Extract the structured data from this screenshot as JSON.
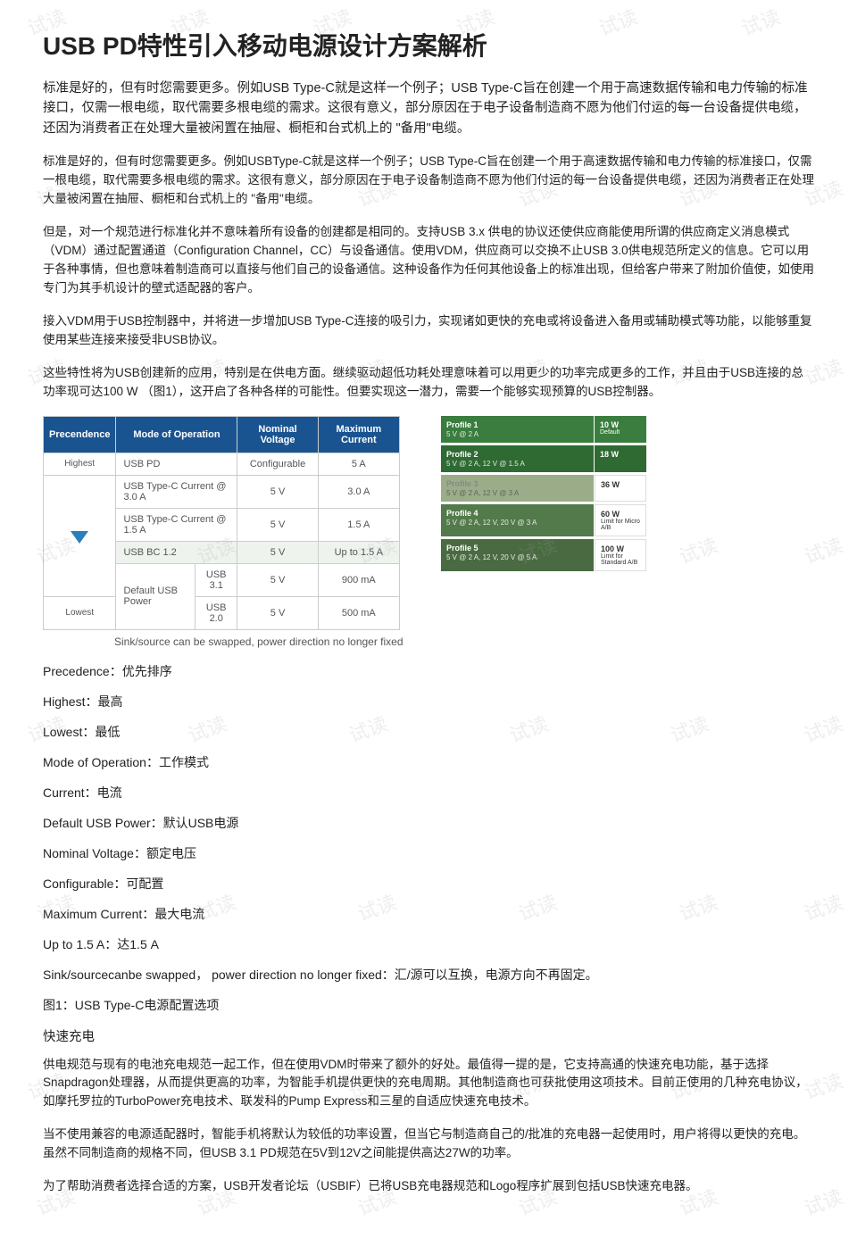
{
  "title": "USB PD特性引入移动电源设计方案解析",
  "paragraphs": {
    "p1": "标准是好的，但有时您需要更多。例如USB Type-C就是这样一个例子；USB Type-C旨在创建一个用于高速数据传输和电力传输的标准接口，仅需一根电缆，取代需要多根电缆的需求。这很有意义，部分原因在于电子设备制造商不愿为他们付运的每一台设备提供电缆，还因为消费者正在处理大量被闲置在抽屉、橱柜和台式机上的 \"备用\"电缆。",
    "p2": "标准是好的，但有时您需要更多。例如USBType-C就是这样一个例子；USB Type-C旨在创建一个用于高速数据传输和电力传输的标准接口，仅需一根电缆，取代需要多根电缆的需求。这很有意义，部分原因在于电子设备制造商不愿为他们付运的每一台设备提供电缆，还因为消费者正在处理大量被闲置在抽屉、橱柜和台式机上的 \"备用\"电缆。",
    "p3": "但是，对一个规范进行标准化并不意味着所有设备的创建都是相同的。支持USB 3.x 供电的协议还使供应商能使用所谓的供应商定义消息模式（VDM）通过配置通道（Configuration Channel，CC）与设备通信。使用VDM，供应商可以交换不止USB 3.0供电规范所定义的信息。它可以用于各种事情，但也意味着制造商可以直接与他们自己的设备通信。这种设备作为任何其他设备上的标准出现，但给客户带来了附加价值使，如使用专门为其手机设计的壁式适配器的客户。",
    "p4": "接入VDM用于USB控制器中，并将进一步增加USB Type-C连接的吸引力，实现诸如更快的充电或将设备进入备用或辅助模式等功能，以能够重复使用某些连接来接受非USB协议。",
    "p5": "这些特性将为USB创建新的应用，特别是在供电方面。继续驱动超低功耗处理意味着可以用更少的功率完成更多的工作，并且由于USB连接的总功率现可达100 W （图1），这开启了各种各样的可能性。但要实现这一潜力，需要一个能够实现预算的USB控制器。",
    "fast_title": "快速充电",
    "p6": "供电规范与现有的电池充电规范一起工作，但在使用VDM时带来了额外的好处。最值得一提的是，它支持高通的快速充电功能，基于选择Snapdragon处理器，从而提供更高的功率，为智能手机提供更快的充电周期。其他制造商也可获批使用这项技术。目前正使用的几种充电协议，如摩托罗拉的TurboPower充电技术、联发科的Pump Express和三星的自适应快速充电技术。",
    "p7": "当不使用兼容的电源适配器时，智能手机将默认为较低的功率设置，但当它与制造商自己的/批准的充电器一起使用时，用户将得以更快的充电。虽然不同制造商的规格不同，但USB 3.1 PD规范在5V到12V之间能提供高达27W的功率。",
    "p8": "为了帮助消费者选择合适的方案，USB开发者论坛（USBIF）已将USB充电器规范和Logo程序扩展到包括USB快速充电器。"
  },
  "prec_table": {
    "headers": {
      "c1": "Precendence",
      "c2": "Mode of Operation",
      "c3": "Nominal Voltage",
      "c4": "Maximum Current"
    },
    "highest": "Highest",
    "lowest": "Lowest",
    "rows": [
      {
        "mode": "USB PD",
        "sub": "",
        "nv": "Configurable",
        "mc": "5 A"
      },
      {
        "mode": "USB Type-C Current @ 3.0 A",
        "sub": "",
        "nv": "5 V",
        "mc": "3.0 A"
      },
      {
        "mode": "USB Type-C Current @ 1.5 A",
        "sub": "",
        "nv": "5 V",
        "mc": "1.5 A"
      },
      {
        "mode": "USB BC 1.2",
        "sub": "",
        "nv": "5 V",
        "mc": "Up to 1.5 A",
        "hl": true
      },
      {
        "mode": "Default USB Power",
        "sub": "USB 3.1",
        "nv": "5 V",
        "mc": "900 mA"
      },
      {
        "mode": "",
        "sub": "USB 2.0",
        "nv": "5 V",
        "mc": "500 mA"
      }
    ]
  },
  "profiles": [
    {
      "title": "Profile 1",
      "spec": "5 V @ 2 A",
      "watt": "10 W",
      "note": "Default",
      "lcls": "pf1",
      "rcls": "pf1r"
    },
    {
      "title": "Profile 2",
      "spec": "5 V @ 2 A, 12 V @ 1.5 A",
      "watt": "18 W",
      "note": "",
      "lcls": "pf2",
      "rcls": "pf2r"
    },
    {
      "title": "Profile 3",
      "spec": "5 V @ 2 A, 12 V @ 3 A",
      "watt": "36 W",
      "note": "",
      "lcls": "pf3",
      "rcls": "pf3r"
    },
    {
      "title": "Profile 4",
      "spec": "5 V @ 2 A, 12 V, 20 V @ 3 A",
      "watt": "60 W",
      "note": "Limit for Micro A/B",
      "lcls": "pf4",
      "rcls": "pf4r"
    },
    {
      "title": "Profile 5",
      "spec": "5 V @ 2 A, 12 V, 20 V @ 5 A",
      "watt": "100 W",
      "note": "Limit for Standard A/B",
      "lcls": "pf5",
      "rcls": "pf5r"
    }
  ],
  "caption": "Sink/source can be swapped, power direction no longer fixed",
  "definitions": [
    "Precedence：优先排序",
    "Highest：最高",
    "Lowest：最低",
    "Mode of Operation：工作模式",
    "Current：电流",
    "Default USB Power：默认USB电源",
    "Nominal Voltage：额定电压",
    "Configurable：可配置",
    "Maximum Current：最大电流",
    "Up to 1.5 A：达1.5 A",
    "Sink/sourcecanbe swapped， power direction no longer fixed：汇/源可以互换，电源方向不再固定。",
    "图1：USB Type-C电源配置选项"
  ],
  "watermark_text": "试读"
}
